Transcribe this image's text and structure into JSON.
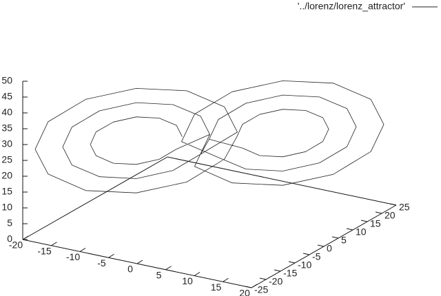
{
  "chart_data": {
    "type": "line3d",
    "xlim": [
      -20,
      20
    ],
    "xticks": [
      -20,
      -15,
      -10,
      -5,
      0,
      5,
      10,
      15,
      20
    ],
    "ylim": [
      -25,
      25
    ],
    "yticks": [
      -25,
      -20,
      -15,
      -10,
      -5,
      0,
      5,
      10,
      15,
      20,
      25
    ],
    "zlim": [
      0,
      50
    ],
    "zticks": [
      0,
      5,
      10,
      15,
      20,
      25,
      30,
      35,
      40,
      45,
      50
    ],
    "legend": "top-right",
    "series": [
      {
        "name": "'../lorenz/lorenz_attractor'",
        "color": "#222222",
        "x": [
          -3.5,
          -4.1,
          -6,
          -8.5,
          -11,
          -12.9,
          -13.5,
          -12.9,
          -11,
          -8.5,
          -6,
          -4.1,
          -0.5,
          -1.5,
          -4.5,
          -8.5,
          -12.5,
          -15.5,
          -16.5,
          -15.5,
          -12.5,
          -8.5,
          -4.5,
          -1.5,
          2.5,
          1.1,
          -3,
          -8.5,
          -14,
          -18.1,
          -19.5,
          -18.1,
          -14,
          -8.5,
          -3,
          1.1,
          3.5,
          4.1,
          6,
          8.5,
          11,
          12.9,
          13.5,
          12.9,
          11,
          8.5,
          6,
          4.1,
          0.5,
          1.5,
          4.5,
          8.5,
          12.5,
          15.5,
          16.5,
          15.5,
          12.5,
          8.5,
          4.5,
          1.5,
          -2.5,
          -1.1,
          3,
          8.5,
          14,
          18.1,
          19.5,
          18.1,
          14,
          8.5,
          3,
          -1.1,
          -0.5,
          -1.5,
          -4.5,
          -8.5,
          -12.5,
          -15.5,
          -16.5,
          -15.5,
          -12.5,
          -8.5,
          -4.5,
          -1.5,
          0.5,
          1.5,
          4.5,
          8.5,
          12.5,
          15.5,
          16.5,
          15.5,
          12.5,
          8.5,
          4.5,
          1.5
        ],
        "y": [
          -2.5,
          -3.3,
          -5.5,
          -8.5,
          -11.5,
          -13.7,
          -14.5,
          -13.7,
          -11.5,
          -8.5,
          -5.5,
          -3.3,
          1.1,
          -0.1,
          -3.7,
          -8.5,
          -13.3,
          -16.9,
          -18.1,
          -16.9,
          -13.3,
          -8.5,
          -3.7,
          -0.1,
          4.7,
          3,
          -1.9,
          -8.5,
          -15.1,
          -20,
          -21.7,
          -20,
          -15.1,
          -8.5,
          -1.9,
          3,
          2.5,
          3.3,
          5.5,
          8.5,
          11.5,
          13.7,
          14.5,
          13.7,
          11.5,
          8.5,
          5.5,
          3.3,
          -1.1,
          0.1,
          3.7,
          8.5,
          13.3,
          16.9,
          18.1,
          16.9,
          13.3,
          8.5,
          3.7,
          0.1,
          -4.7,
          -3,
          1.9,
          8.5,
          15.1,
          20,
          21.7,
          20,
          15.1,
          8.5,
          1.9,
          -3,
          1.1,
          -0.1,
          -3.7,
          -8.5,
          -13.3,
          -16.9,
          -18.1,
          -16.9,
          -13.3,
          -8.5,
          -3.7,
          -0.1,
          -1.1,
          0.1,
          3.7,
          8.5,
          13.3,
          16.9,
          18.1,
          16.9,
          13.3,
          8.5,
          3.7,
          0.1
        ],
        "z": [
          27,
          30.8,
          33.5,
          34.5,
          33.5,
          30.8,
          27,
          23.3,
          20.5,
          19.5,
          20.5,
          23.3,
          27,
          33,
          37.4,
          39,
          37.4,
          33,
          27,
          21,
          16.6,
          15,
          16.6,
          21,
          27,
          35.3,
          41.4,
          43.5,
          41.4,
          35.3,
          27,
          18.8,
          12.6,
          10.5,
          12.6,
          18.8,
          27,
          30.8,
          33.5,
          34.5,
          33.5,
          30.8,
          27,
          23.3,
          20.5,
          19.5,
          20.5,
          23.3,
          27,
          33,
          37.4,
          39,
          37.4,
          33,
          27,
          21,
          16.6,
          15,
          16.6,
          21,
          27,
          35.3,
          41.4,
          43.5,
          41.4,
          35.3,
          27,
          18.8,
          12.6,
          10.5,
          12.6,
          18.8,
          27,
          33,
          37.4,
          39,
          37.4,
          33,
          27,
          21,
          16.6,
          15,
          16.6,
          21,
          27,
          33,
          37.4,
          39,
          37.4,
          33,
          27,
          21,
          16.6,
          15,
          16.6,
          21
        ]
      }
    ]
  }
}
